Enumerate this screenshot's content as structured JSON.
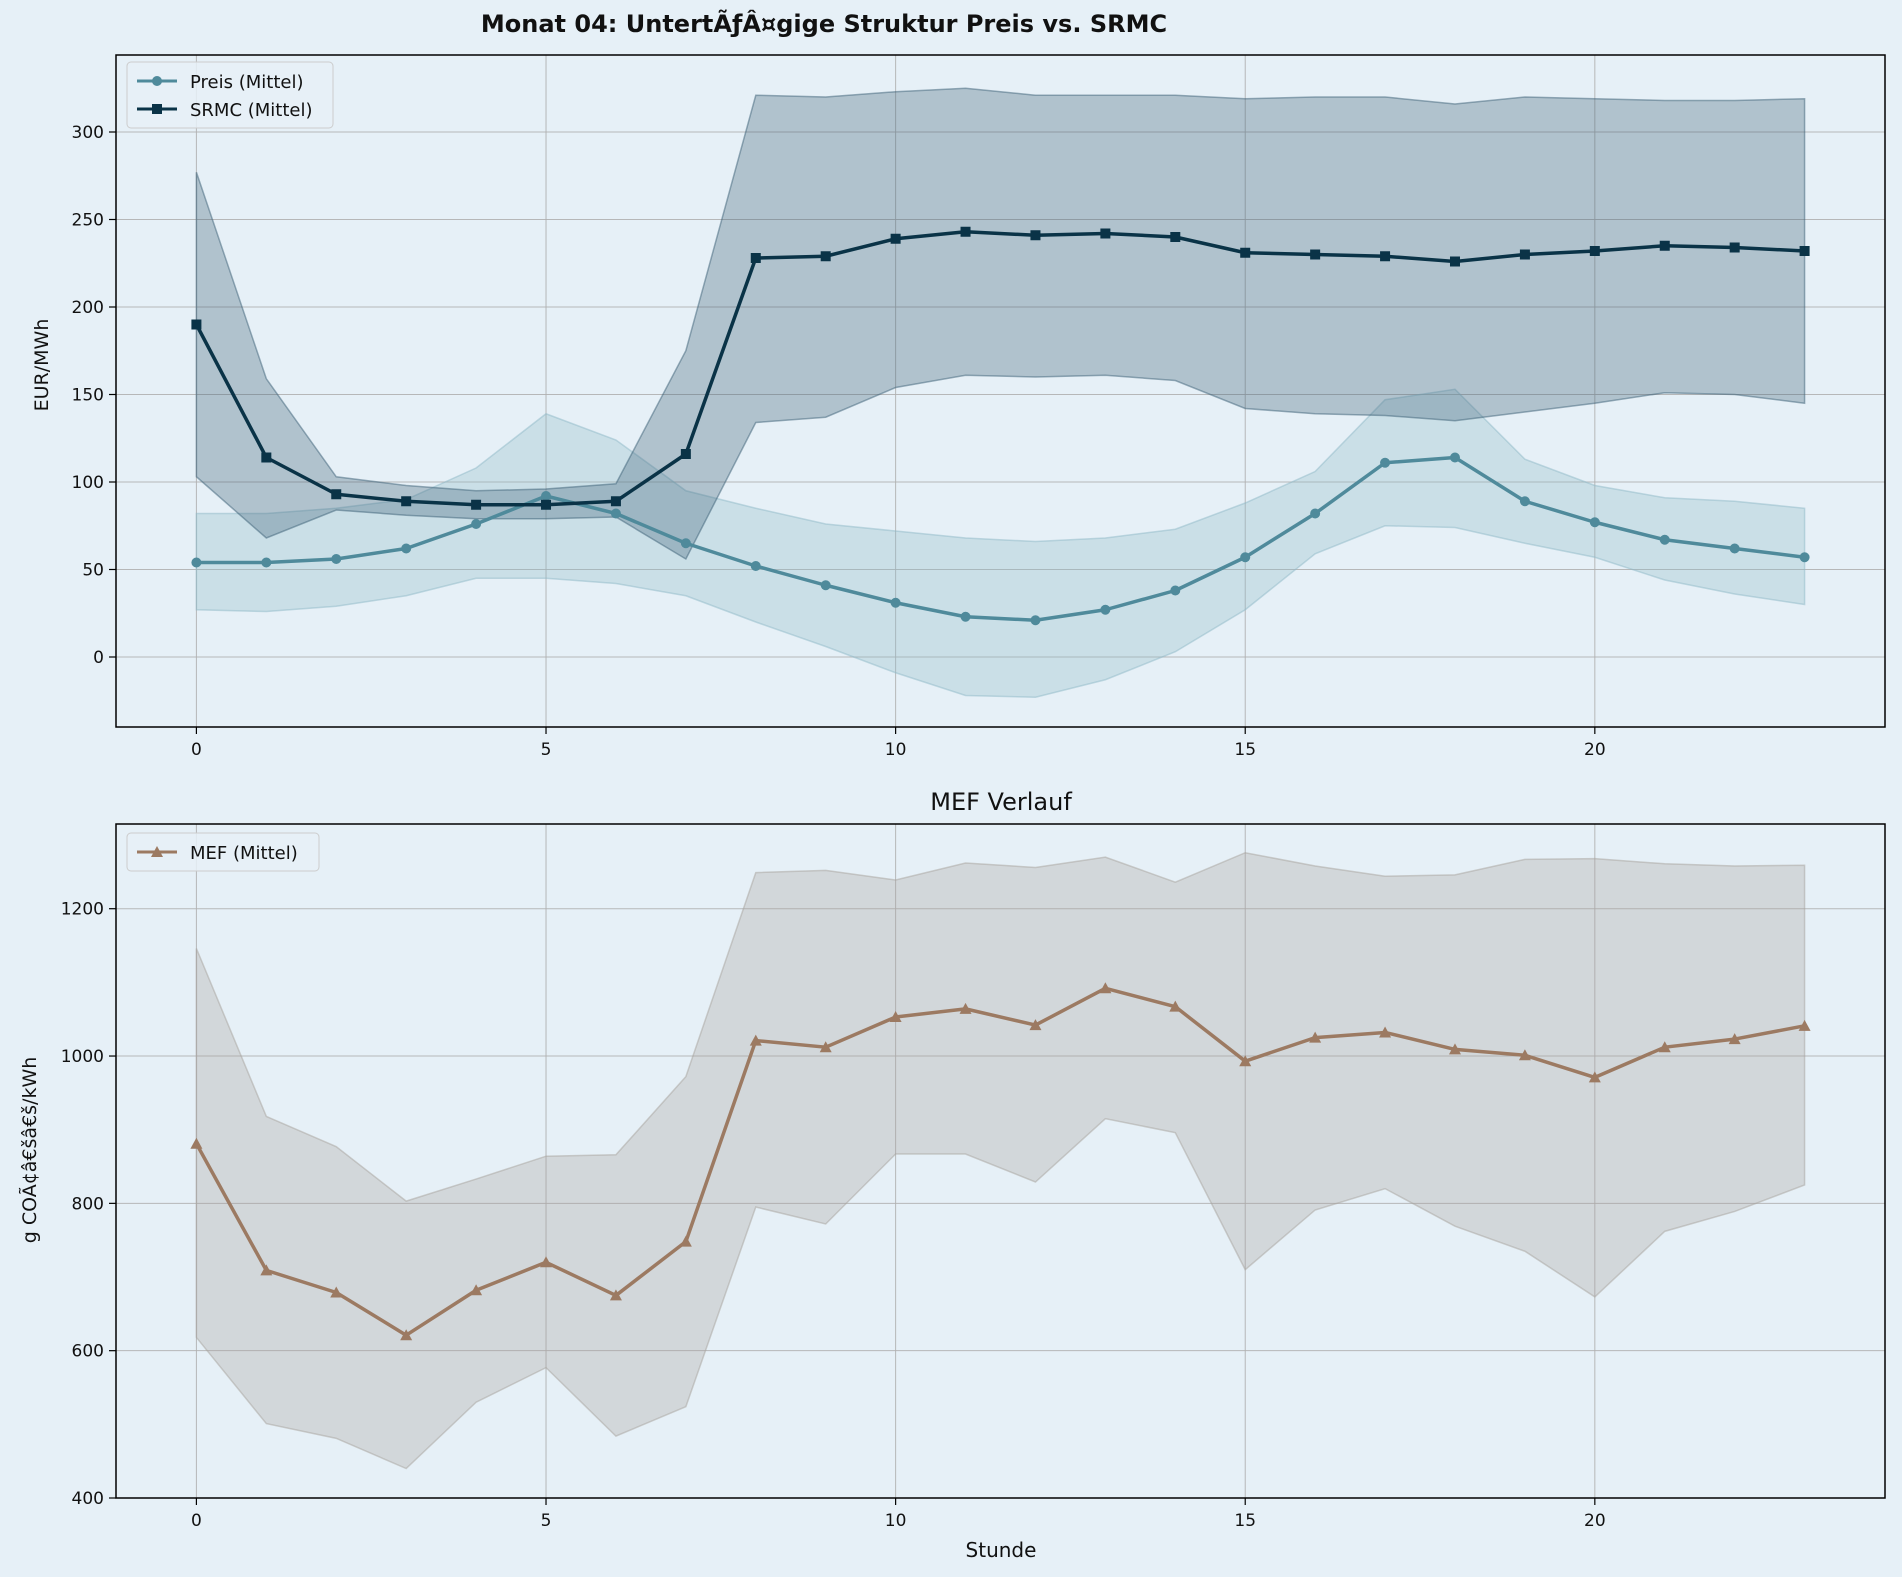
{
  "chart_data": [
    {
      "type": "line",
      "title": "Monat 04: UntertÃƒÂ¤gige Struktur Preis vs. SRMC",
      "xlabel": "",
      "ylabel": "EUR/MWh",
      "xlim": [
        -1.15,
        24.15
      ],
      "ylim": [
        -40,
        344
      ],
      "xticks": [
        0,
        5,
        10,
        15,
        20
      ],
      "yticks": [
        0,
        50,
        100,
        150,
        200,
        250,
        300
      ],
      "grid": true,
      "legend_position": "top-left",
      "x": [
        0,
        1,
        2,
        3,
        4,
        5,
        6,
        7,
        8,
        9,
        10,
        11,
        12,
        13,
        14,
        15,
        16,
        17,
        18,
        19,
        20,
        21,
        22,
        23
      ],
      "series": [
        {
          "name": "Preis (Mittel)",
          "color": "#4f8a9b",
          "marker": "circle",
          "values": [
            54,
            54,
            56,
            62,
            76,
            92,
            82,
            65,
            52,
            41,
            31,
            23,
            21,
            27,
            38,
            57,
            82,
            111,
            114,
            89,
            77,
            67,
            62,
            57
          ],
          "band_low": [
            27,
            26,
            29,
            35,
            45,
            45,
            42,
            35,
            20,
            6,
            -9,
            -22,
            -23,
            -13,
            3,
            27,
            59,
            75,
            74,
            65,
            57,
            44,
            36,
            30
          ],
          "band_high": [
            82,
            82,
            85,
            90,
            108,
            139,
            124,
            95,
            85,
            76,
            72,
            68,
            66,
            68,
            73,
            88,
            106,
            147,
            153,
            113,
            98,
            91,
            89,
            85
          ]
        },
        {
          "name": "SRMC (Mittel)",
          "color": "#0a3347",
          "marker": "square",
          "values": [
            190,
            114,
            93,
            89,
            87,
            87,
            89,
            116,
            228,
            229,
            239,
            243,
            241,
            242,
            240,
            231,
            230,
            229,
            226,
            230,
            232,
            235,
            234,
            232
          ],
          "band_low": [
            103,
            68,
            84,
            81,
            79,
            79,
            80,
            56,
            134,
            137,
            154,
            161,
            160,
            161,
            158,
            142,
            139,
            138,
            135,
            140,
            145,
            151,
            150,
            145
          ],
          "band_high": [
            277,
            159,
            103,
            98,
            95,
            96,
            99,
            175,
            321,
            320,
            323,
            325,
            321,
            321,
            321,
            319,
            320,
            320,
            316,
            320,
            319,
            318,
            318,
            319
          ]
        }
      ]
    },
    {
      "type": "line",
      "title": "MEF Verlauf",
      "xlabel": "Stunde",
      "ylabel": "g COÃ¢â€šâ€š/kWh",
      "xlim": [
        -1.15,
        24.15
      ],
      "ylim": [
        400,
        1315
      ],
      "xticks": [
        0,
        5,
        10,
        15,
        20
      ],
      "yticks": [
        400,
        600,
        800,
        1000,
        1200
      ],
      "grid": true,
      "legend_position": "top-left",
      "x": [
        0,
        1,
        2,
        3,
        4,
        5,
        6,
        7,
        8,
        9,
        10,
        11,
        12,
        13,
        14,
        15,
        16,
        17,
        18,
        19,
        20,
        21,
        22,
        23
      ],
      "series": [
        {
          "name": "MEF (Mittel)",
          "color": "#9c7a62",
          "marker": "triangle",
          "values": [
            881,
            709,
            679,
            621,
            682,
            720,
            675,
            748,
            1021,
            1012,
            1053,
            1064,
            1042,
            1092,
            1067,
            993,
            1025,
            1032,
            1009,
            1001,
            971,
            1012,
            1023,
            1041
          ],
          "band_low": [
            618,
            501,
            481,
            440,
            530,
            577,
            484,
            524,
            795,
            772,
            867,
            867,
            829,
            915,
            896,
            710,
            791,
            820,
            769,
            735,
            673,
            762,
            789,
            825
          ],
          "band_high": [
            1146,
            918,
            877,
            803,
            833,
            864,
            866,
            972,
            1249,
            1252,
            1239,
            1262,
            1256,
            1270,
            1236,
            1276,
            1258,
            1244,
            1246,
            1267,
            1268,
            1261,
            1258,
            1259
          ]
        }
      ]
    }
  ]
}
